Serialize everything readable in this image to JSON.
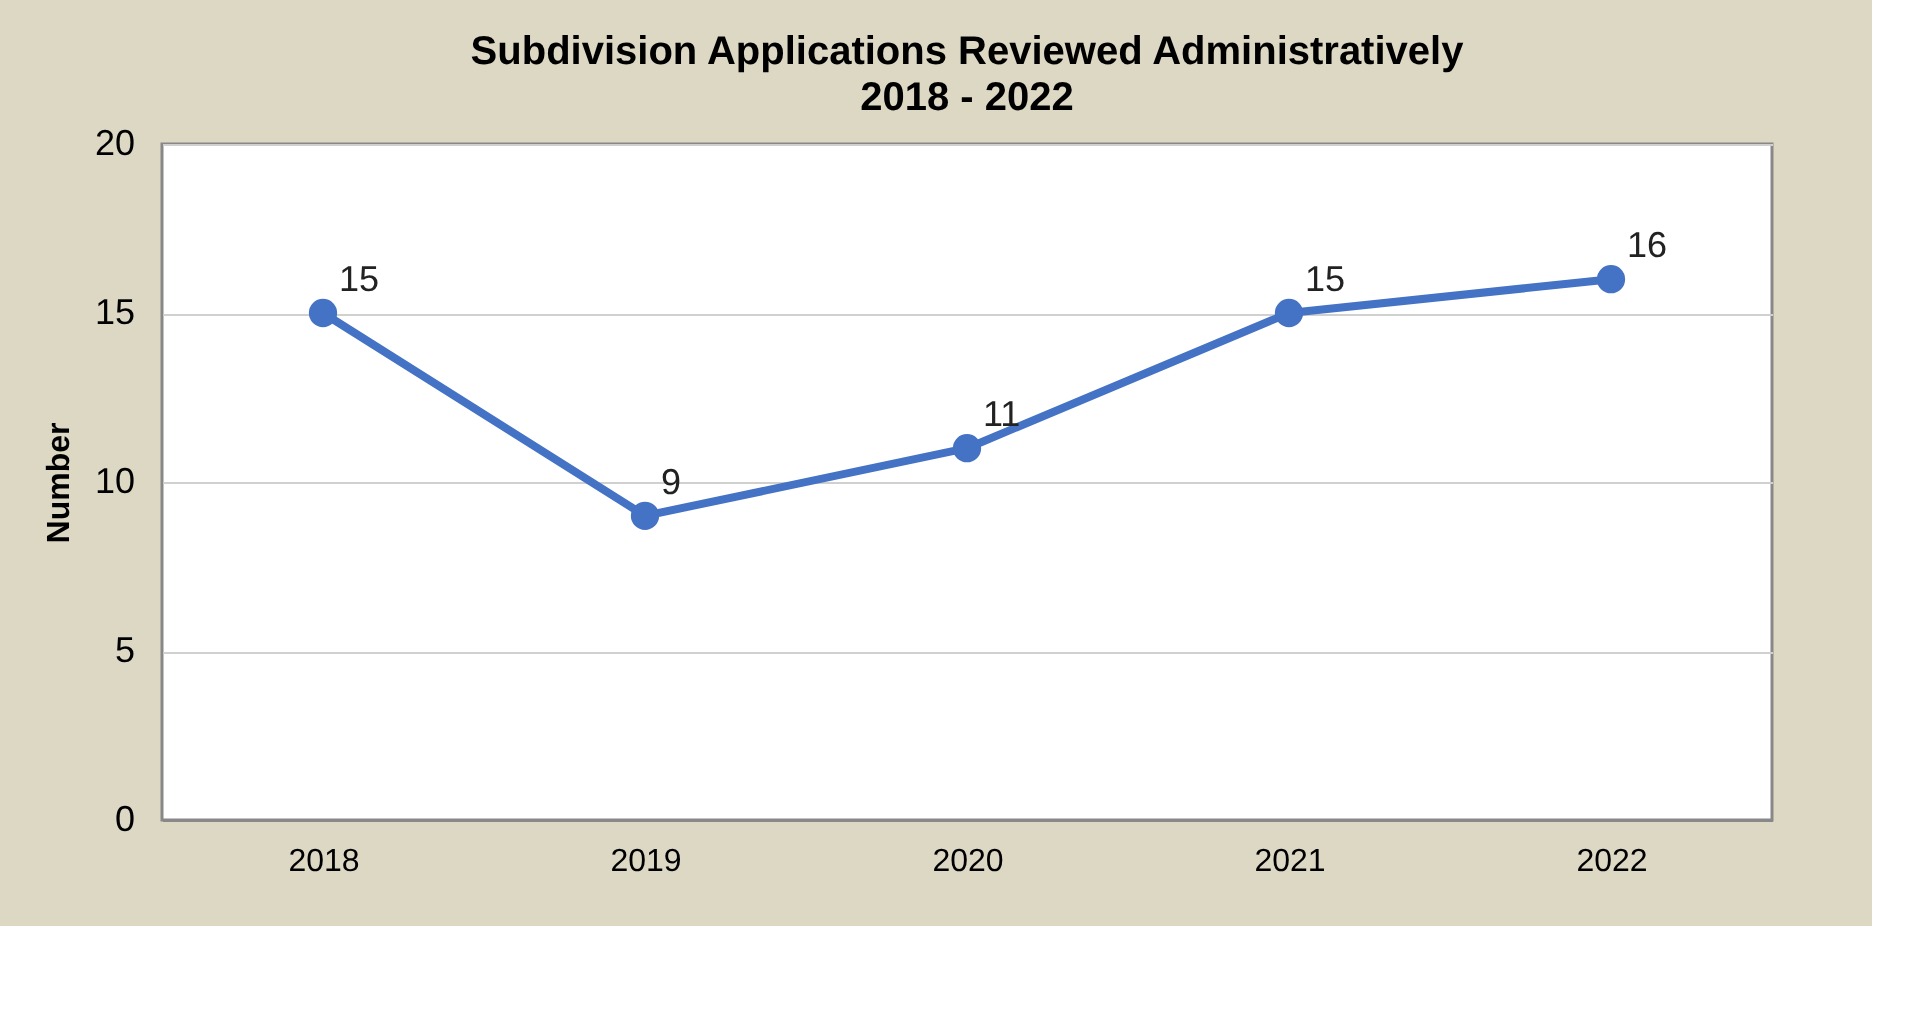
{
  "chart_data": {
    "type": "line",
    "title": "Subdivision Applications Reviewed Administratively",
    "subtitle": "2018 - 2022",
    "ylabel": "Number",
    "categories": [
      "2018",
      "2019",
      "2020",
      "2021",
      "2022"
    ],
    "series": [
      {
        "color": "#4472c4",
        "values": [
          15,
          9,
          11,
          15,
          16
        ]
      }
    ],
    "ylim": [
      0,
      20
    ],
    "yticks": [
      0,
      5,
      10,
      15,
      20
    ],
    "grid": "y",
    "marker": "circle",
    "line_style": "solid",
    "data_labels": true,
    "legend": false
  }
}
